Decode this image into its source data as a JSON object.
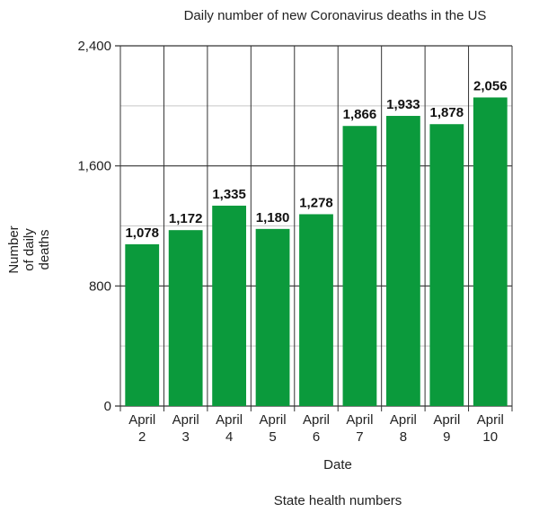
{
  "chart_data": {
    "type": "bar",
    "title": "Daily number of new Coronavirus deaths in the US",
    "xlabel": "Date",
    "ylabel_lines": [
      "Number",
      "of daily",
      "deaths"
    ],
    "source": "State health numbers",
    "categories": [
      [
        "April",
        "2"
      ],
      [
        "April",
        "3"
      ],
      [
        "April",
        "4"
      ],
      [
        "April",
        "5"
      ],
      [
        "April",
        "6"
      ],
      [
        "April",
        "7"
      ],
      [
        "April",
        "8"
      ],
      [
        "April",
        "9"
      ],
      [
        "April",
        "10"
      ]
    ],
    "values": [
      1078,
      1172,
      1335,
      1180,
      1278,
      1866,
      1933,
      1878,
      2056
    ],
    "value_labels": [
      "1,078",
      "1,172",
      "1,335",
      "1,180",
      "1,278",
      "1,866",
      "1,933",
      "1,878",
      "2,056"
    ],
    "ylim": [
      0,
      2400
    ],
    "yticks": [
      {
        "value": 0,
        "label": "0"
      },
      {
        "value": 800,
        "label": "800"
      },
      {
        "value": 1600,
        "label": "1,600"
      },
      {
        "value": 2400,
        "label": "2,400"
      }
    ],
    "minor_gridlines": [
      400,
      1200,
      2000
    ],
    "grid": true,
    "bar_color": "#0b9a3c"
  }
}
